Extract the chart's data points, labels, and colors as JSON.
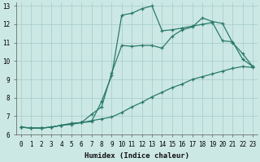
{
  "xlabel": "Humidex (Indice chaleur)",
  "ylabel": "",
  "background_color": "#cce8e4",
  "grid_color": "#aacfcc",
  "line_color": "#2a7a6a",
  "xlim": [
    -0.5,
    23.5
  ],
  "ylim": [
    6,
    13.2
  ],
  "xticks": [
    0,
    1,
    2,
    3,
    4,
    5,
    6,
    7,
    8,
    9,
    10,
    11,
    12,
    13,
    14,
    15,
    16,
    17,
    18,
    19,
    20,
    21,
    22,
    23
  ],
  "yticks": [
    6,
    7,
    8,
    9,
    10,
    11,
    12,
    13
  ],
  "line1_x": [
    0,
    1,
    2,
    3,
    4,
    5,
    6,
    7,
    8,
    9,
    10,
    11,
    12,
    13,
    14,
    15,
    16,
    17,
    18,
    19,
    20,
    21,
    22,
    23
  ],
  "line1_y": [
    6.4,
    6.35,
    6.35,
    6.4,
    6.5,
    6.6,
    6.65,
    6.7,
    7.8,
    9.2,
    12.5,
    12.6,
    12.85,
    13.0,
    11.65,
    11.7,
    11.8,
    11.9,
    12.0,
    12.1,
    11.1,
    11.05,
    10.1,
    9.7
  ],
  "line2_x": [
    0,
    1,
    2,
    3,
    4,
    5,
    6,
    7,
    8,
    9,
    10,
    11,
    12,
    13,
    14,
    15,
    16,
    17,
    18,
    19,
    20,
    21,
    22,
    23
  ],
  "line2_y": [
    6.4,
    6.35,
    6.35,
    6.4,
    6.5,
    6.6,
    6.65,
    7.1,
    7.5,
    9.35,
    10.85,
    10.8,
    10.85,
    10.85,
    10.7,
    11.35,
    11.7,
    11.85,
    12.35,
    12.15,
    12.05,
    11.0,
    10.4,
    9.7
  ],
  "line3_x": [
    0,
    1,
    2,
    3,
    4,
    5,
    6,
    7,
    8,
    9,
    10,
    11,
    12,
    13,
    14,
    15,
    16,
    17,
    18,
    19,
    20,
    21,
    22,
    23
  ],
  "line3_y": [
    6.4,
    6.35,
    6.35,
    6.4,
    6.5,
    6.55,
    6.65,
    6.75,
    6.85,
    6.95,
    7.2,
    7.5,
    7.75,
    8.05,
    8.3,
    8.55,
    8.75,
    9.0,
    9.15,
    9.3,
    9.45,
    9.6,
    9.7,
    9.65
  ]
}
